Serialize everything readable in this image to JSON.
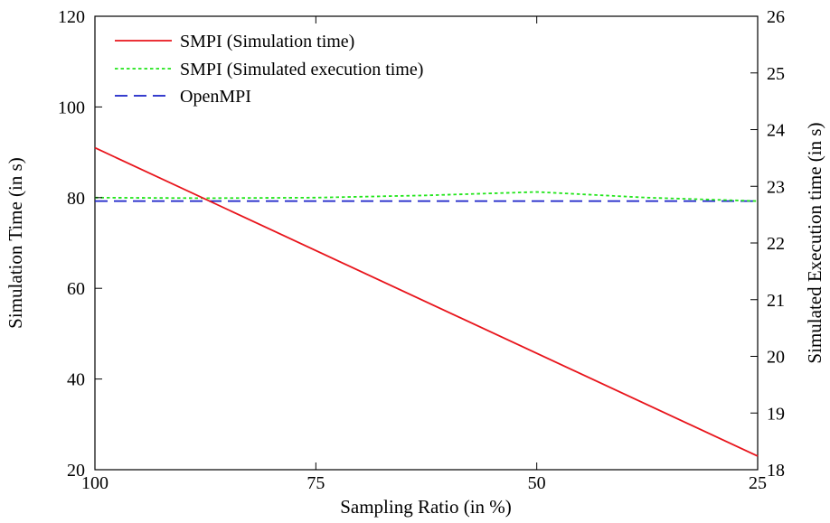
{
  "chart_data": {
    "type": "line",
    "xlabel": "Sampling Ratio (in %)",
    "ylabel": "Simulation Time (in s)",
    "y2label": "Simulated Execution time (in s)",
    "xlim": [
      100,
      25
    ],
    "ylim": [
      20,
      120
    ],
    "y2lim": [
      18,
      26
    ],
    "xticks": [
      100,
      75,
      50,
      25
    ],
    "yticks": [
      20,
      40,
      60,
      80,
      100,
      120
    ],
    "y2ticks": [
      18,
      19,
      20,
      21,
      22,
      23,
      24,
      25,
      26
    ],
    "grid": false,
    "legend_position": "top-left",
    "series": [
      {
        "name": "SMPI (Simulation time)",
        "axis": "left",
        "color": "#e8141b",
        "style": "solid",
        "x": [
          100,
          25
        ],
        "y": [
          91,
          23
        ]
      },
      {
        "name": "SMPI (Simulated execution time)",
        "axis": "right",
        "color": "#22e51b",
        "style": "dotted",
        "x": [
          100,
          87.5,
          75,
          62.5,
          50,
          37.5,
          25
        ],
        "y": [
          22.8,
          22.79,
          22.8,
          22.84,
          22.9,
          22.8,
          22.74
        ]
      },
      {
        "name": "OpenMPI",
        "axis": "right",
        "color": "#1a22c8",
        "style": "dashed",
        "x": [
          100,
          25
        ],
        "y": [
          22.74,
          22.74
        ]
      }
    ]
  }
}
